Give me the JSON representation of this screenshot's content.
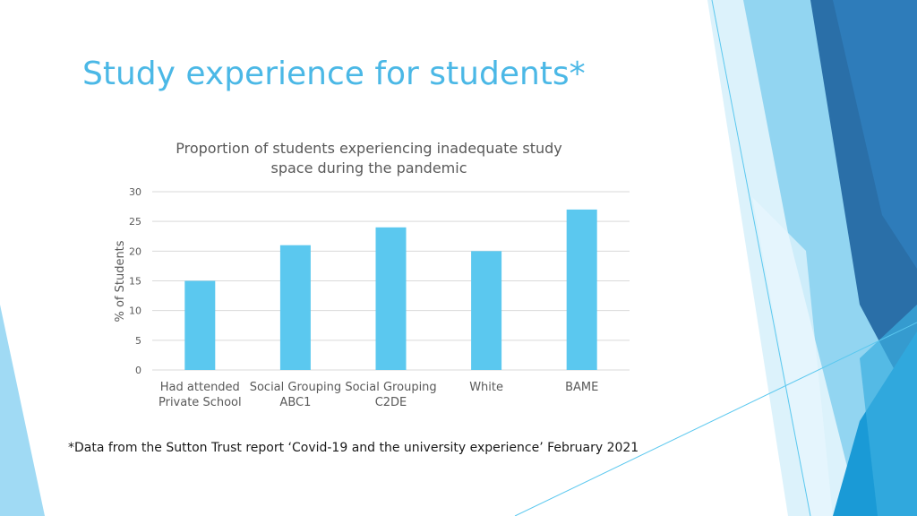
{
  "slide": {
    "title": "Study experience for students*",
    "footnote": "*Data from the Sutton Trust report ‘Covid-19 and the university experience’ February 2021"
  },
  "colors": {
    "title": "#4bb8e6",
    "bar": "#5bc8ef",
    "grid": "#d9d9d9",
    "text": "#595959",
    "deco_dark": "#2a6fa8",
    "deco_mid": "#3aaee0",
    "deco_light": "#8fd3f2"
  },
  "chart_data": {
    "type": "bar",
    "title_lines": [
      "Proportion of students experiencing inadequate study",
      "space during the pandemic"
    ],
    "categories": [
      [
        "Had attended",
        "Private School"
      ],
      [
        "Social Grouping",
        "ABC1"
      ],
      [
        "Social Grouping",
        "C2DE"
      ],
      [
        "White"
      ],
      [
        "BAME"
      ]
    ],
    "values": [
      15,
      21,
      24,
      20,
      27
    ],
    "ylabel": "% of Students",
    "ylim": [
      0,
      30
    ],
    "yticks": [
      0,
      5,
      10,
      15,
      20,
      25,
      30
    ],
    "grid": true,
    "legend": "none"
  }
}
